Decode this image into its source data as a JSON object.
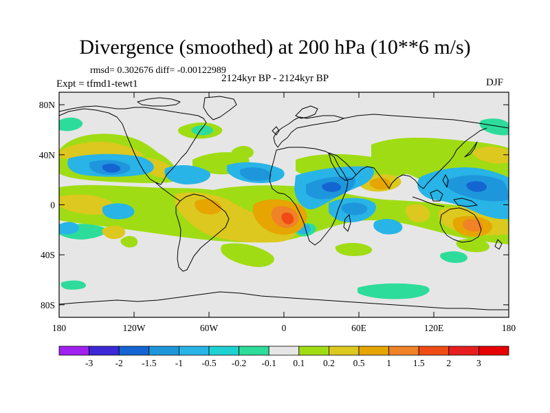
{
  "title": "Divergence (smoothed) at 200 hPa (10**6 m/s)",
  "stats": "rmsd= 0.302676 diff= -0.00122989",
  "subtitle": "2124kyr BP - 2124kyr BP",
  "experiment": "Expt = tfmd1-tewt1",
  "season": "DJF",
  "axes": {
    "lat_labels": [
      "80N",
      "40N",
      "0",
      "40S",
      "80S"
    ],
    "lat_values": [
      80,
      40,
      0,
      -40,
      -80
    ],
    "lon_labels": [
      "180",
      "120W",
      "60W",
      "0",
      "60E",
      "120E",
      "180"
    ],
    "lon_values": [
      -180,
      -120,
      -60,
      0,
      60,
      120,
      180
    ]
  },
  "colorbar": {
    "labels": [
      "-3",
      "-2",
      "-1.5",
      "-1",
      "-0.5",
      "-0.2",
      "-0.1",
      "0.1",
      "0.2",
      "0.5",
      "1",
      "1.5",
      "2",
      "3"
    ],
    "colors": [
      "#a020f0",
      "#3c28d7",
      "#1464d2",
      "#1e96dc",
      "#28b4e6",
      "#1ed2d2",
      "#2ddc9b",
      "#e6e6e6",
      "#a0dc14",
      "#dcc81e",
      "#e6a500",
      "#f08228",
      "#f04b14",
      "#e61e1e",
      "#e60000"
    ]
  },
  "map": {
    "background_color": "#e6e6e6",
    "coastline_color": "#000000"
  }
}
